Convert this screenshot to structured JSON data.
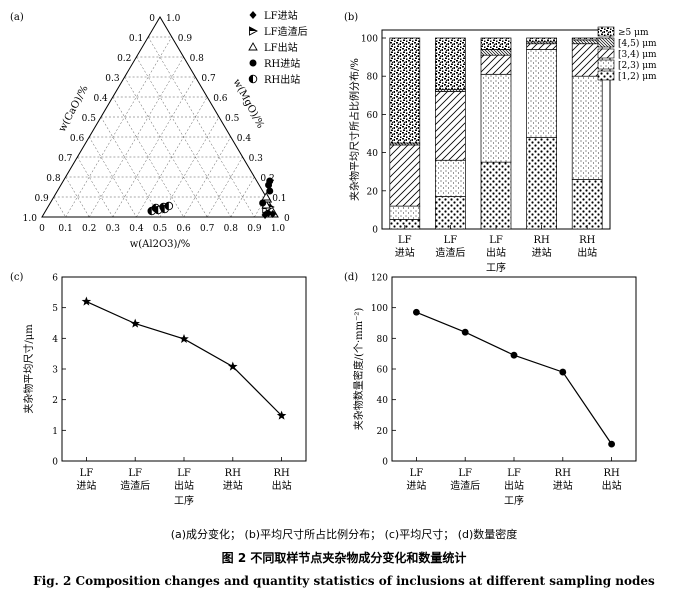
{
  "panel_labels": [
    "(a)",
    "(b)",
    "(c)",
    "(d)"
  ],
  "sub_caption": "(a)成分变化；  (b)平均尺寸所占比例分布；  (c)平均尺寸；  (d)数量密度",
  "figure_title_zh": "图 2    不同取样节点夹杂物成分变化和数量统计",
  "figure_title_en": "Fig. 2    Composition changes and quantity statistics of inclusions at different sampling nodes",
  "chart_data": [
    {
      "id": "a",
      "type": "scatter",
      "subtype": "ternary",
      "left_axis_label": "w(CaO)/%",
      "right_axis_label": "w(MgO)/%",
      "bottom_axis_label": "w(Al2O3)/%",
      "tick_labels": [
        "0",
        "0.1",
        "0.2",
        "0.3",
        "0.4",
        "0.5",
        "0.6",
        "0.7",
        "0.8",
        "0.9",
        "1.0"
      ],
      "grid": true,
      "legend_position": "top-right",
      "series": [
        {
          "name": "LF进站",
          "marker": "diamond",
          "points": [
            {
              "al2o3": 0.94,
              "mgo": 0.01
            },
            {
              "al2o3": 0.95,
              "mgo": 0.02
            },
            {
              "al2o3": 0.97,
              "mgo": 0.015
            }
          ]
        },
        {
          "name": "LF造渣后",
          "marker": "half-triangle",
          "points": [
            {
              "al2o3": 0.93,
              "mgo": 0.04
            },
            {
              "al2o3": 0.94,
              "mgo": 0.05
            }
          ]
        },
        {
          "name": "LF出站",
          "marker": "triangle-open",
          "points": [
            {
              "al2o3": 0.92,
              "mgo": 0.06
            },
            {
              "al2o3": 0.91,
              "mgo": 0.09
            },
            {
              "al2o3": 0.9,
              "mgo": 0.1
            }
          ]
        },
        {
          "name": "RH进站",
          "marker": "circle-filled",
          "points": [
            {
              "al2o3": 0.88,
              "mgo": 0.16
            },
            {
              "al2o3": 0.875,
              "mgo": 0.18
            },
            {
              "al2o3": 0.9,
              "mgo": 0.13
            },
            {
              "al2o3": 0.9,
              "mgo": 0.07
            }
          ]
        },
        {
          "name": "RH出站",
          "marker": "circle-half",
          "points": [
            {
              "al2o3": 0.45,
              "mgo": 0.03
            },
            {
              "al2o3": 0.46,
              "mgo": 0.045
            },
            {
              "al2o3": 0.475,
              "mgo": 0.035
            },
            {
              "al2o3": 0.49,
              "mgo": 0.05
            },
            {
              "al2o3": 0.5,
              "mgo": 0.04
            },
            {
              "al2o3": 0.51,
              "mgo": 0.055
            }
          ]
        }
      ]
    },
    {
      "id": "b",
      "type": "bar",
      "stacked": true,
      "categories": [
        "LF\n进站",
        "LF\n造渣后",
        "LF\n出站",
        "RH\n进站",
        "RH\n出站"
      ],
      "xlabel": "工序",
      "ylabel": "夹杂物平均尺寸所占比例分布/%",
      "ylim": [
        0,
        100
      ],
      "yticks": [
        0,
        20,
        40,
        60,
        80,
        100
      ],
      "legend_position": "top-right",
      "series": [
        {
          "name": "[1,2) μm",
          "values": [
            5,
            17,
            35,
            48,
            26
          ],
          "pattern": "dots-large"
        },
        {
          "name": "[2,3) μm",
          "values": [
            7,
            19,
            46,
            46,
            54
          ],
          "pattern": "dots-fine"
        },
        {
          "name": "[3,4) μm",
          "values": [
            32,
            36,
            10,
            3,
            17
          ],
          "pattern": "diag-wide"
        },
        {
          "name": "[4,5) μm",
          "values": [
            1,
            1,
            3,
            1,
            2
          ],
          "pattern": "diag-dense"
        },
        {
          "name": "≥5 μm",
          "values": [
            55,
            27,
            6,
            2,
            1
          ],
          "pattern": "speckle"
        }
      ]
    },
    {
      "id": "c",
      "type": "line",
      "categories": [
        "LF\n进站",
        "LF\n造渣后",
        "LF\n出站",
        "RH\n进站",
        "RH\n出站"
      ],
      "xlabel": "工序",
      "ylabel": "夹杂物平均尺寸/μm",
      "ylim": [
        0,
        6
      ],
      "yticks": [
        0,
        1,
        2,
        3,
        4,
        5,
        6
      ],
      "marker": "star",
      "series": [
        {
          "values": [
            5.2,
            4.48,
            3.98,
            3.08,
            1.48
          ]
        }
      ]
    },
    {
      "id": "d",
      "type": "line",
      "categories": [
        "LF\n进站",
        "LF\n造渣后",
        "LF\n出站",
        "RH\n进站",
        "RH\n出站"
      ],
      "xlabel": "工序",
      "ylabel": "夹杂物数量密度/(个·mm⁻²)",
      "ylim": [
        0,
        120
      ],
      "yticks": [
        0,
        20,
        40,
        60,
        80,
        100,
        120
      ],
      "marker": "circle",
      "series": [
        {
          "values": [
            97,
            84,
            69,
            58,
            11
          ]
        }
      ]
    }
  ]
}
